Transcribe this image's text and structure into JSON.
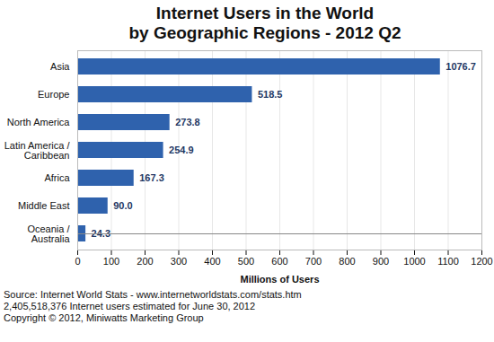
{
  "chart_data": {
    "type": "bar",
    "orientation": "horizontal",
    "title": "Internet Users in the World",
    "subtitle": "by Geographic Regions - 2012 Q2",
    "categories": [
      "Asia",
      "Europe",
      "North America",
      "Latin America / Caribbean",
      "Africa",
      "Middle East",
      "Oceania / Australia"
    ],
    "values": [
      1076.7,
      518.5,
      273.8,
      254.9,
      167.3,
      90.0,
      24.3
    ],
    "value_labels": [
      "1076.7",
      "518.5",
      "273.8",
      "254.9",
      "167.3",
      "90.0",
      "24.3"
    ],
    "data_labels": true,
    "color": "#2f62ad",
    "xlabel": "Millions of Users",
    "xlim": [
      0,
      1200
    ],
    "xticks": [
      0,
      100,
      200,
      300,
      400,
      500,
      600,
      700,
      800,
      900,
      1000,
      1100,
      1200
    ],
    "grid": true,
    "annotations": [
      "Source: Internet World Stats - www.internetworldstats.com/stats.htm",
      "2,405,518,376 Internet users estimated for June 30, 2012",
      "Copyright © 2012, Miniwatts Marketing Group"
    ]
  }
}
